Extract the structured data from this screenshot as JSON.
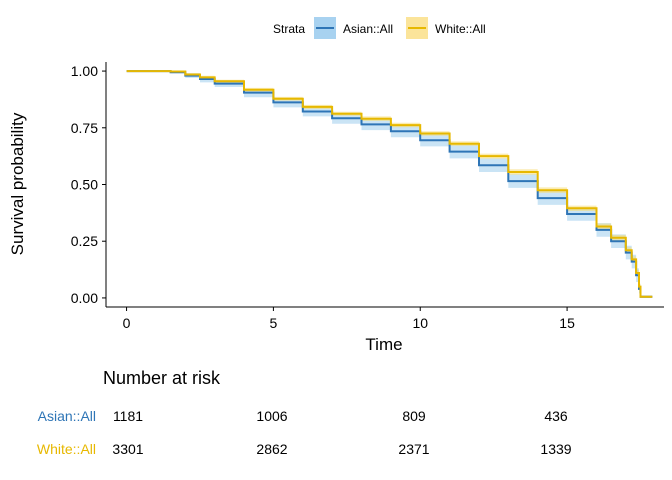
{
  "chart_data": {
    "type": "line",
    "subtype": "kaplan-meier",
    "xlabel": "Time",
    "ylabel": "Survival probability",
    "xlim": [
      -0.7,
      18.3
    ],
    "ylim": [
      -0.04,
      1.04
    ],
    "xticks": [
      0,
      5,
      10,
      15
    ],
    "yticks": [
      0.0,
      0.25,
      0.5,
      0.75,
      1.0
    ],
    "ytick_labels": [
      "0.00",
      "0.25",
      "0.50",
      "0.75",
      "1.00"
    ],
    "legend": {
      "title": "Strata",
      "position": "top"
    },
    "series": [
      {
        "name": "Asian::All",
        "color": "#2e75b6",
        "band_color": "#9fcdec",
        "x": [
          0,
          0.5,
          1.5,
          2.0,
          2.5,
          3.0,
          4.0,
          5.0,
          6.0,
          7.0,
          8.0,
          9.0,
          10.0,
          11.0,
          12.0,
          13.0,
          14.0,
          15.0,
          16.0,
          16.5,
          17.0,
          17.2,
          17.35,
          17.45,
          17.5,
          17.9
        ],
        "y": [
          1.0,
          1.0,
          0.995,
          0.98,
          0.965,
          0.945,
          0.905,
          0.862,
          0.822,
          0.792,
          0.765,
          0.735,
          0.695,
          0.645,
          0.585,
          0.515,
          0.44,
          0.37,
          0.3,
          0.25,
          0.2,
          0.16,
          0.1,
          0.04,
          0.005,
          0.005
        ],
        "lower": [
          1.0,
          1.0,
          0.99,
          0.97,
          0.95,
          0.93,
          0.885,
          0.84,
          0.8,
          0.768,
          0.74,
          0.708,
          0.668,
          0.615,
          0.555,
          0.485,
          0.41,
          0.34,
          0.27,
          0.22,
          0.17,
          0.13,
          0.07,
          0.02,
          0.0,
          0.0
        ],
        "upper": [
          1.0,
          1.0,
          1.0,
          0.99,
          0.975,
          0.96,
          0.92,
          0.88,
          0.842,
          0.815,
          0.79,
          0.762,
          0.722,
          0.675,
          0.615,
          0.545,
          0.47,
          0.4,
          0.33,
          0.28,
          0.23,
          0.19,
          0.13,
          0.06,
          0.01,
          0.01
        ]
      },
      {
        "name": "White::All",
        "color": "#e7b800",
        "band_color": "#f7dc73",
        "x": [
          0,
          0.5,
          1.5,
          2.0,
          2.5,
          3.0,
          4.0,
          5.0,
          6.0,
          7.0,
          8.0,
          9.0,
          10.0,
          11.0,
          12.0,
          13.0,
          14.0,
          15.0,
          16.0,
          16.5,
          17.0,
          17.2,
          17.35,
          17.45,
          17.5,
          17.9
        ],
        "y": [
          1.0,
          1.0,
          0.998,
          0.985,
          0.972,
          0.955,
          0.918,
          0.878,
          0.842,
          0.812,
          0.79,
          0.762,
          0.725,
          0.68,
          0.625,
          0.555,
          0.475,
          0.395,
          0.315,
          0.265,
          0.21,
          0.17,
          0.11,
          0.05,
          0.005,
          0.005
        ],
        "lower": [
          1.0,
          1.0,
          0.995,
          0.98,
          0.965,
          0.948,
          0.91,
          0.87,
          0.833,
          0.803,
          0.78,
          0.752,
          0.715,
          0.67,
          0.614,
          0.543,
          0.463,
          0.383,
          0.302,
          0.252,
          0.197,
          0.157,
          0.097,
          0.037,
          0.0,
          0.0
        ],
        "upper": [
          1.0,
          1.0,
          1.0,
          0.99,
          0.979,
          0.962,
          0.926,
          0.886,
          0.851,
          0.821,
          0.8,
          0.772,
          0.735,
          0.69,
          0.636,
          0.567,
          0.487,
          0.407,
          0.328,
          0.278,
          0.223,
          0.183,
          0.123,
          0.063,
          0.01,
          0.01
        ]
      }
    ]
  },
  "risk_table": {
    "title": "Number at risk",
    "times": [
      0,
      5,
      10,
      15
    ],
    "rows": [
      {
        "name": "Asian::All",
        "color": "#2e75b6",
        "values": [
          "1181",
          "1006",
          "809",
          "436"
        ]
      },
      {
        "name": "White::All",
        "color": "#e7b800",
        "values": [
          "3301",
          "2862",
          "2371",
          "1339"
        ]
      }
    ]
  }
}
